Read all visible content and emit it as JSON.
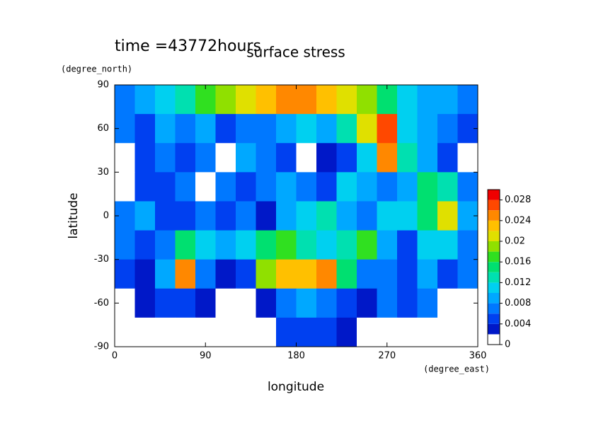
{
  "chart_data": {
    "type": "contourf",
    "title": "surface stress",
    "subtitle": "time =43772hours",
    "x_label": "longitude",
    "x_units": "(degree_east)",
    "y_label": "latitude",
    "y_units": "(degree_north)",
    "x": [
      10,
      30,
      50,
      70,
      90,
      110,
      130,
      150,
      170,
      190,
      210,
      230,
      250,
      270,
      290,
      310,
      330,
      350
    ],
    "y": [
      80,
      60,
      40,
      20,
      0,
      -20,
      -40,
      -60,
      -80
    ],
    "z": [
      [
        0.006,
        0.008,
        0.01,
        0.012,
        0.016,
        0.018,
        0.02,
        0.022,
        0.024,
        0.024,
        0.022,
        0.02,
        0.018,
        0.014,
        0.01,
        0.008,
        0.008,
        0.006
      ],
      [
        0.006,
        0.004,
        0.008,
        0.006,
        0.008,
        0.004,
        0.006,
        0.006,
        0.008,
        0.01,
        0.008,
        0.012,
        0.02,
        0.026,
        0.01,
        0.008,
        0.006,
        0.004
      ],
      [
        0,
        0.004,
        0.006,
        0.004,
        0.006,
        0,
        0.008,
        0.006,
        0.004,
        0,
        0.002,
        0.004,
        0.01,
        0.024,
        0.012,
        0.008,
        0.004,
        0
      ],
      [
        0,
        0.004,
        0.004,
        0.006,
        0,
        0.006,
        0.004,
        0.006,
        0.008,
        0.006,
        0.004,
        0.01,
        0.008,
        0.006,
        0.008,
        0.014,
        0.012,
        0.006
      ],
      [
        0.006,
        0.008,
        0.004,
        0.004,
        0.006,
        0.004,
        0.006,
        0.002,
        0.008,
        0.01,
        0.012,
        0.008,
        0.006,
        0.01,
        0.01,
        0.014,
        0.02,
        0.008
      ],
      [
        0.006,
        0.004,
        0.006,
        0.014,
        0.01,
        0.008,
        0.01,
        0.014,
        0.016,
        0.012,
        0.01,
        0.012,
        0.016,
        0.008,
        0.004,
        0.01,
        0.01,
        0.006
      ],
      [
        0.004,
        0.002,
        0.008,
        0.024,
        0.006,
        0.002,
        0.004,
        0.018,
        0.022,
        0.022,
        0.024,
        0.014,
        0.006,
        0.006,
        0.004,
        0.008,
        0.004,
        0.006
      ],
      [
        0,
        0.002,
        0.004,
        0.004,
        0.002,
        0,
        0,
        0.002,
        0.006,
        0.008,
        0.006,
        0.004,
        0.002,
        0.006,
        0.004,
        0.006,
        0,
        0
      ],
      [
        0,
        0,
        0,
        0,
        0,
        0,
        0,
        0,
        0.004,
        0.004,
        0.004,
        0.002,
        0,
        0,
        0,
        0,
        0,
        0
      ]
    ],
    "xlim": [
      0,
      360
    ],
    "xticks": [
      0,
      90,
      180,
      270,
      360
    ],
    "ylim": [
      -90,
      90
    ],
    "yticks": [
      -90,
      -60,
      -30,
      0,
      30,
      60,
      90
    ],
    "levels": [
      0,
      0.002,
      0.004,
      0.006,
      0.008,
      0.01,
      0.012,
      0.014,
      0.016,
      0.018,
      0.02,
      0.022,
      0.024,
      0.026,
      0.028,
      0.03
    ],
    "colors": [
      "#ffffff",
      "#0018c8",
      "#0040f0",
      "#0078ff",
      "#00a8ff",
      "#00d0f0",
      "#00e0b0",
      "#00e070",
      "#30e020",
      "#90e000",
      "#e0e000",
      "#ffc000",
      "#ff8800",
      "#ff4800",
      "#f00000"
    ],
    "clim": [
      0,
      0.03
    ],
    "cticks": [
      0,
      0.004,
      0.008,
      0.012,
      0.016,
      0.02,
      0.024,
      0.028
    ]
  }
}
